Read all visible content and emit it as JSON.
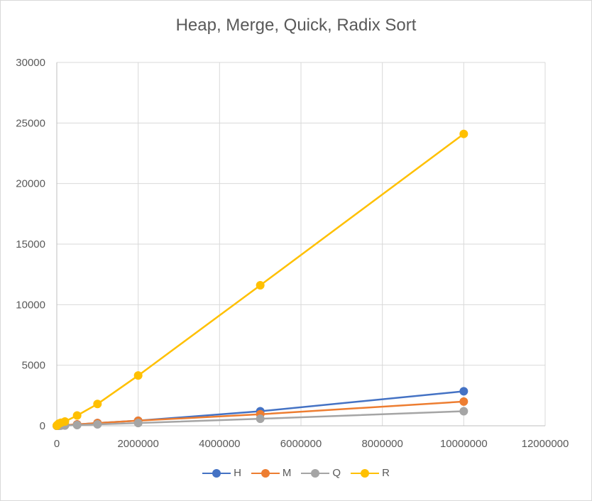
{
  "chart_data": {
    "type": "scatter",
    "title": "Heap, Merge, Quick, Radix Sort",
    "xlabel": "",
    "ylabel": "",
    "xlim": [
      0,
      12000000
    ],
    "ylim": [
      0,
      30000
    ],
    "x_ticks": [
      "0",
      "2000000",
      "4000000",
      "6000000",
      "8000000",
      "10000000",
      "12000000"
    ],
    "y_ticks": [
      "0",
      "5000",
      "10000",
      "15000",
      "20000",
      "25000",
      "30000"
    ],
    "grid": true,
    "legend_position": "bottom",
    "series": [
      {
        "name": "H",
        "color": "#4472c4",
        "x": [
          1000,
          5000,
          10000,
          50000,
          100000,
          200000,
          500000,
          1000000,
          2000000,
          5000000,
          10000000
        ],
        "y": [
          1,
          2,
          3,
          10,
          22,
          45,
          110,
          230,
          420,
          1200,
          2850
        ]
      },
      {
        "name": "M",
        "color": "#ed7d31",
        "x": [
          1000,
          5000,
          10000,
          50000,
          100000,
          200000,
          500000,
          1000000,
          2000000,
          5000000,
          10000000
        ],
        "y": [
          1,
          2,
          3,
          12,
          25,
          50,
          120,
          230,
          420,
          950,
          2000
        ]
      },
      {
        "name": "Q",
        "color": "#a5a5a5",
        "x": [
          1000,
          5000,
          10000,
          50000,
          100000,
          200000,
          500000,
          1000000,
          2000000,
          5000000,
          10000000
        ],
        "y": [
          1,
          1,
          2,
          6,
          12,
          25,
          60,
          120,
          230,
          580,
          1200
        ]
      },
      {
        "name": "R",
        "color": "#ffc000",
        "x": [
          1000,
          5000,
          10000,
          50000,
          100000,
          200000,
          500000,
          1000000,
          2000000,
          5000000,
          10000000
        ],
        "y": [
          10,
          30,
          60,
          180,
          250,
          350,
          850,
          1800,
          4150,
          11600,
          24100
        ]
      }
    ]
  }
}
